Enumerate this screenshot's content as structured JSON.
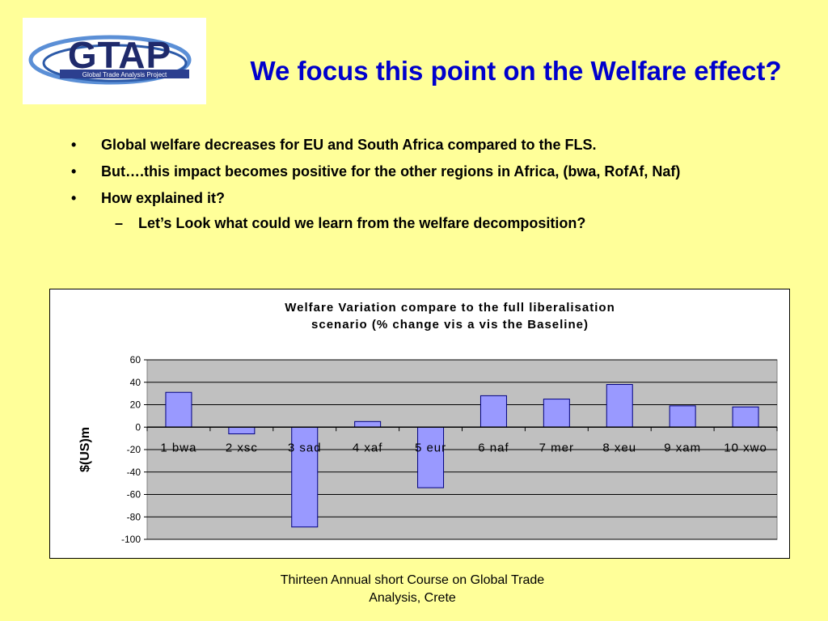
{
  "logo": {
    "text": "GTAP",
    "subtitle": "Global Trade Analysis Project"
  },
  "slide": {
    "title": "We focus this point on the Welfare effect?",
    "bullets": [
      "Global welfare decreases for EU and South Africa compared to the FLS.",
      "But….this impact becomes positive for the other regions in Africa, (bwa, RofAf, Naf)",
      "How explained it?"
    ],
    "sub_bullet": "Let’s Look what could we learn from the welfare decomposition?",
    "bullet_marker": "•",
    "sub_marker": "–",
    "footer": "Thirteen Annual short Course on Global Trade Analysis, Crete"
  },
  "chart_data": {
    "type": "bar",
    "title": "Welfare Variation compare to the full liberalisation scenario (% change vis a vis the Baseline)",
    "ylabel": "$(US)m",
    "xlabel": "",
    "categories": [
      "1 bwa",
      "2 xsc",
      "3 sad",
      "4 xaf",
      "5 eur",
      "6 naf",
      "7 mer",
      "8 xeu",
      "9 xam",
      "10 xwo"
    ],
    "values": [
      31,
      -6,
      -89,
      5,
      -54,
      28,
      25,
      38,
      19,
      18
    ],
    "ylim": [
      -100,
      60
    ],
    "yticks": [
      60,
      40,
      20,
      0,
      -20,
      -40,
      -60,
      -80,
      -100
    ],
    "grid": true,
    "legend": "none",
    "colors": {
      "bar": "#9999ff",
      "bar_edge": "#000080",
      "plot_bg": "#c0c0c0"
    }
  }
}
